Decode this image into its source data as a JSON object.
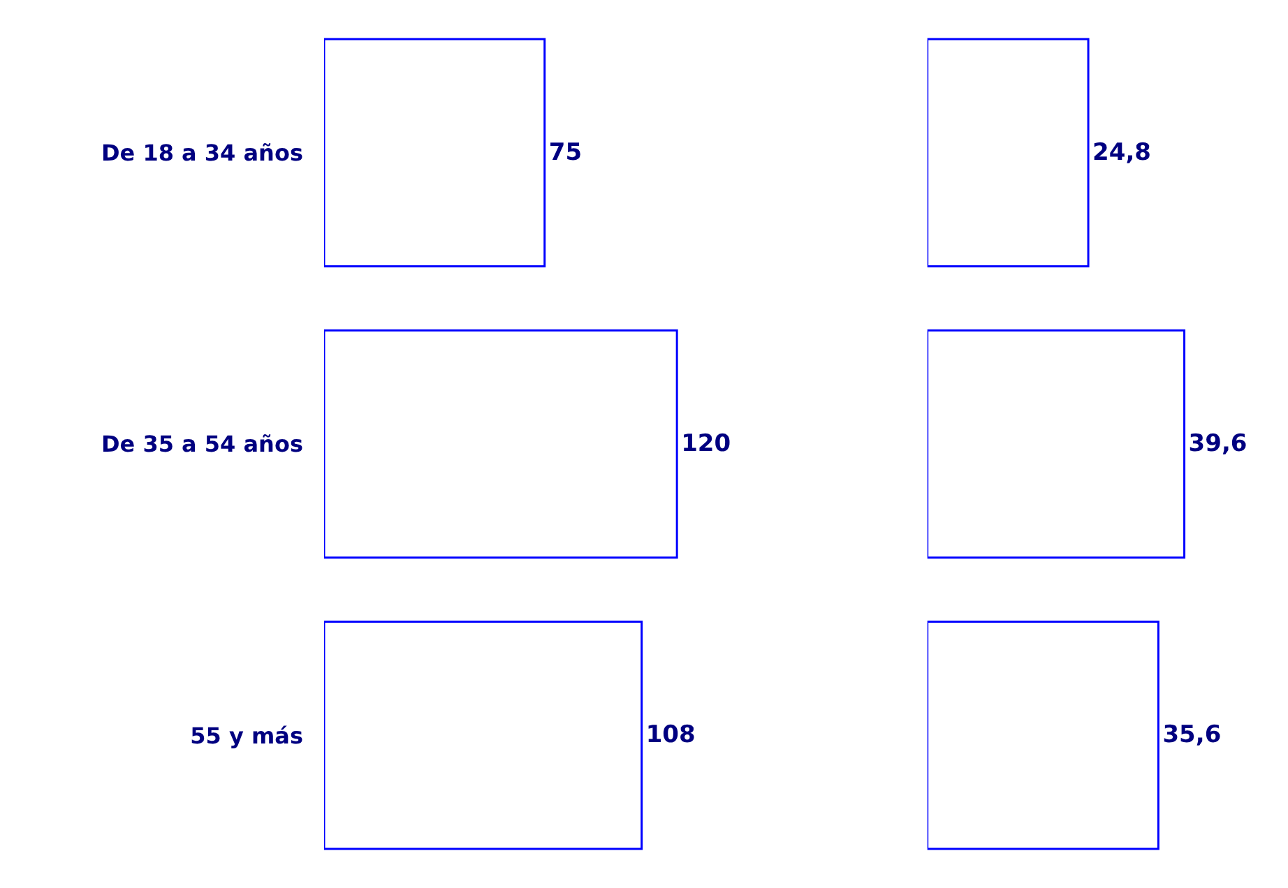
{
  "chart_data": [
    {
      "type": "bar",
      "orientation": "horizontal",
      "categories": [
        "De 18 a 34 años",
        "De 35 a 54 años",
        "55 y más"
      ],
      "series": [
        {
          "color": "#0000ff",
          "values": [
            75,
            120,
            108
          ],
          "value_labels": [
            "75",
            "120",
            "108"
          ]
        }
      ],
      "tick_labels": "y"
    },
    {
      "type": "bar",
      "orientation": "horizontal",
      "categories": [
        null,
        null,
        null
      ],
      "series": [
        {
          "color": "#0000ff",
          "values": [
            24.8,
            39.6,
            35.6
          ],
          "value_labels": [
            "24,8",
            "39,6",
            "35,6"
          ]
        }
      ],
      "tick_labels": false
    }
  ]
}
